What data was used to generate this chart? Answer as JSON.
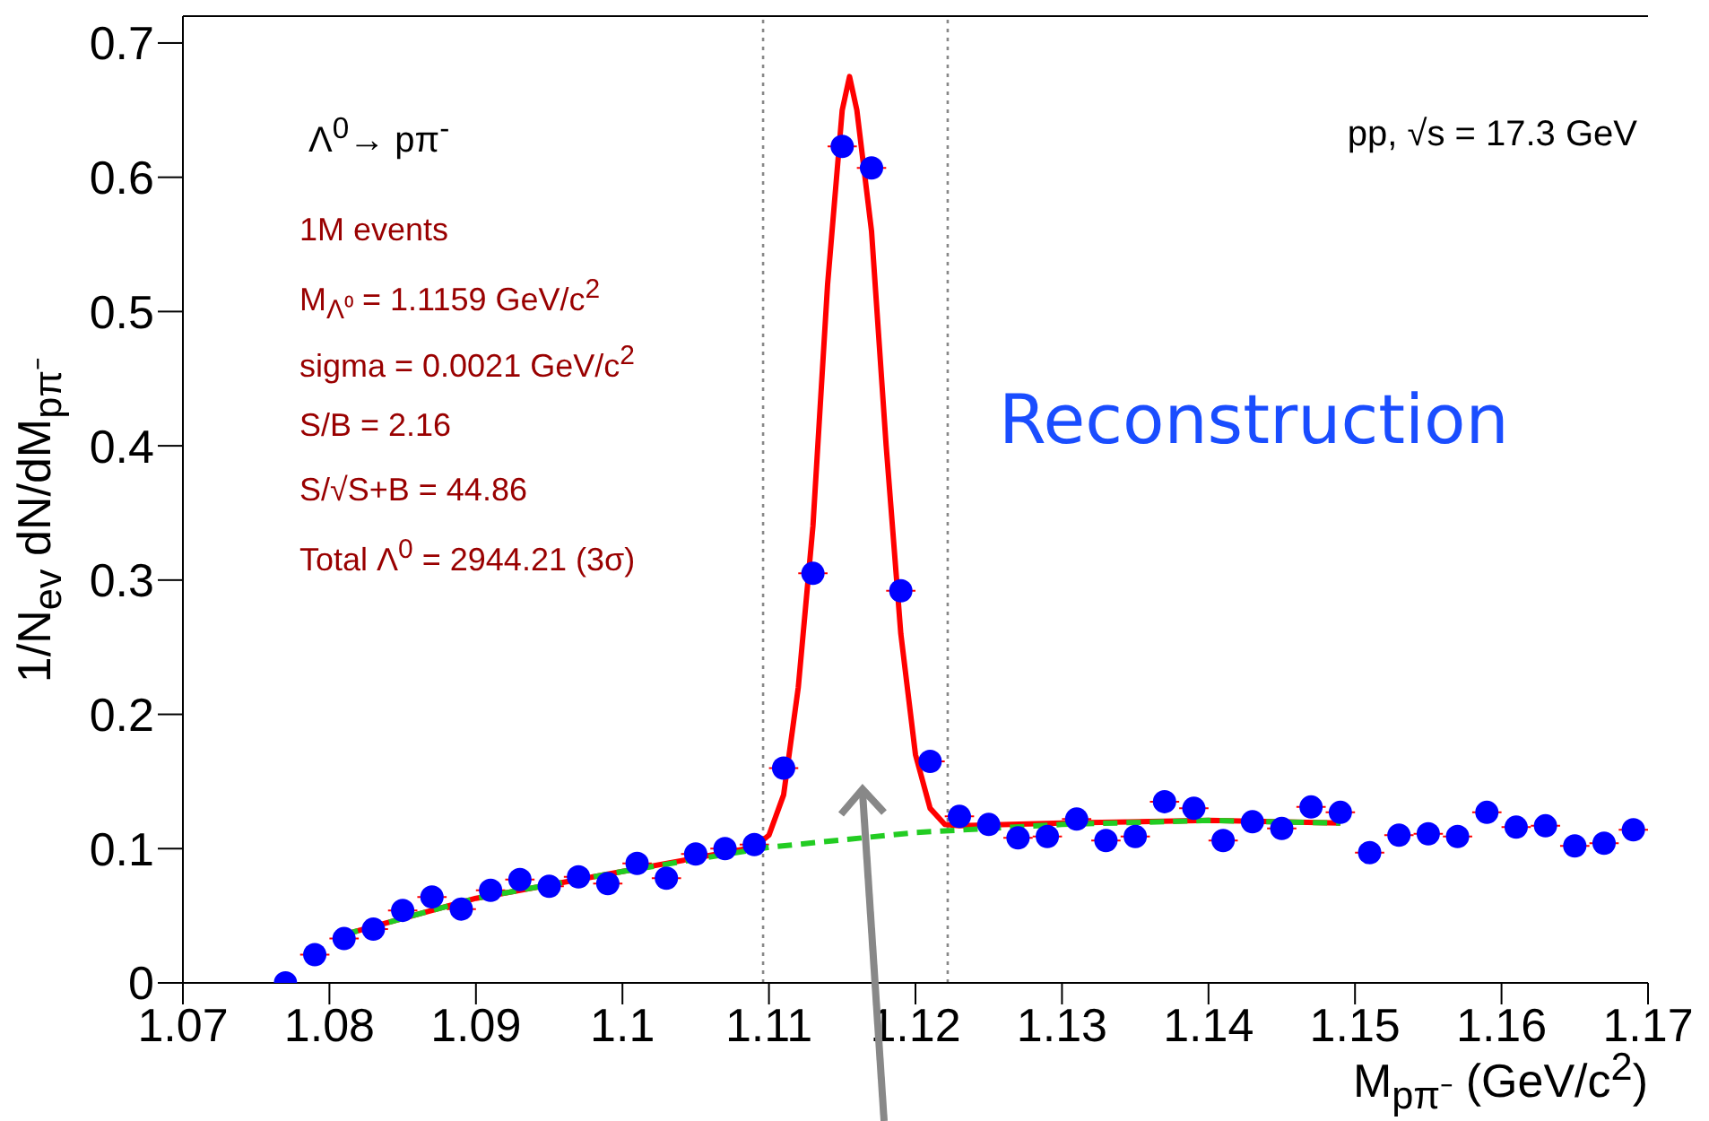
{
  "chart_data": {
    "type": "scatter",
    "xlabel": "M$_{pπ⁻}$ (GeV/c$^{2}$)",
    "ylabel": "1/N$_{ev}$ dN/dM$_{pπ⁻}$",
    "xlim": [
      1.07,
      1.17
    ],
    "ylim": [
      0,
      0.72
    ],
    "xticks": [
      1.07,
      1.08,
      1.09,
      1.1,
      1.11,
      1.12,
      1.13,
      1.14,
      1.15,
      1.16,
      1.17
    ],
    "yticks": [
      0,
      0.1,
      0.2,
      0.3,
      0.4,
      0.5,
      0.6,
      0.7
    ],
    "grid": false,
    "legend": false,
    "series": [
      {
        "type": "scatter",
        "color": "#0000ff",
        "marker": "circle",
        "x": [
          1.077,
          1.079,
          1.081,
          1.083,
          1.085,
          1.087,
          1.089,
          1.091,
          1.093,
          1.095,
          1.097,
          1.099,
          1.101,
          1.103,
          1.105,
          1.107,
          1.109,
          1.111,
          1.113,
          1.115,
          1.117,
          1.119,
          1.121,
          1.123,
          1.125,
          1.127,
          1.129,
          1.131,
          1.133,
          1.135,
          1.137,
          1.139,
          1.141,
          1.143,
          1.145,
          1.147,
          1.149,
          1.151,
          1.153,
          1.155,
          1.157,
          1.159,
          1.161,
          1.163,
          1.165,
          1.167,
          1.169
        ],
        "values": [
          0.0,
          0.021,
          0.033,
          0.04,
          0.054,
          0.064,
          0.055,
          0.069,
          0.077,
          0.072,
          0.079,
          0.074,
          0.089,
          0.078,
          0.096,
          0.1,
          0.103,
          0.16,
          0.305,
          0.623,
          0.607,
          0.292,
          0.165,
          0.124,
          0.118,
          0.108,
          0.109,
          0.122,
          0.106,
          0.109,
          0.135,
          0.13,
          0.106,
          0.12,
          0.115,
          0.131,
          0.127,
          0.097,
          0.11,
          0.111,
          0.109,
          0.127,
          0.116,
          0.117,
          0.102,
          0.104,
          0.114
        ],
        "xerrors": [
          null,
          0.001,
          0.001,
          0.001,
          0.001,
          0.001,
          0.001,
          0.001,
          0.001,
          0.001,
          0.001,
          0.001,
          0.001,
          0.001,
          0.001,
          0.001,
          0.001,
          0.001,
          0.001,
          0.001,
          0.001,
          0.001,
          0.001,
          0.001,
          0.001,
          0.001,
          0.001,
          0.001,
          0.001,
          0.001,
          0.001,
          0.001,
          0.001,
          0.001,
          0.001,
          0.001,
          0.001,
          0.001,
          0.001,
          0.001,
          0.001,
          0.001,
          0.001,
          0.001,
          0.001,
          0.001,
          0.001
        ]
      },
      {
        "type": "line",
        "color": "#ff0000",
        "marker": "none",
        "line_style": "solid",
        "x": [
          1.081,
          1.09,
          1.1,
          1.109,
          1.11,
          1.111,
          1.112,
          1.113,
          1.114,
          1.115,
          1.1155,
          1.116,
          1.117,
          1.118,
          1.119,
          1.12,
          1.121,
          1.122,
          1.123,
          1.13,
          1.14,
          1.149
        ],
        "values": [
          0.036,
          0.063,
          0.083,
          0.101,
          0.11,
          0.14,
          0.22,
          0.34,
          0.52,
          0.65,
          0.675,
          0.65,
          0.56,
          0.4,
          0.26,
          0.17,
          0.13,
          0.118,
          0.117,
          0.119,
          0.121,
          0.119
        ]
      },
      {
        "type": "line",
        "color": "#22cc22",
        "marker": "none",
        "line_style": "dashed",
        "x": [
          1.081,
          1.09,
          1.1,
          1.11,
          1.12,
          1.13,
          1.14,
          1.149
        ],
        "values": [
          0.036,
          0.063,
          0.083,
          0.101,
          0.112,
          0.118,
          0.121,
          0.119
        ]
      }
    ],
    "ref_lines": [
      {
        "axis": "x",
        "value": 1.1096,
        "color": "#888888",
        "line_style": "dotted"
      },
      {
        "axis": "x",
        "value": 1.1222,
        "color": "#888888",
        "line_style": "dotted"
      }
    ],
    "annotations": [
      "Λ$^{0}$→ pπ$^{-}$",
      "1M events",
      "M$_{Λ⁰}$ = 1.1159 GeV/c$^{2}$",
      "sigma = 0.0021 GeV/c$^{2}$",
      "S/B = 2.16",
      "S/√S+B = 44.86",
      "Total Λ$^{0}$ = 2944.21 (3σ)",
      "pp, √s = 17.3 GeV",
      "Reconstruction"
    ]
  }
}
